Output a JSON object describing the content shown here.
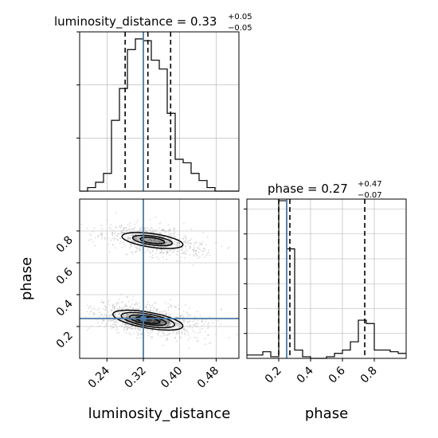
{
  "chart_data": {
    "type": "corner",
    "parameters": [
      "luminosity_distance",
      "phase"
    ],
    "truth": {
      "luminosity_distance": 0.32,
      "phase": 0.25
    },
    "colors": {
      "truth": "#4c7aa5",
      "hist": "#000000",
      "density": "#000000",
      "scatter": "#9a9a9a",
      "grid": "#b0b0b0"
    },
    "grid": true,
    "panels": [
      {
        "id": "luminosity_distance-marginal",
        "type": "histogram",
        "parameter": "luminosity_distance",
        "title": {
          "main": "luminosity_distance = 0.33",
          "sup": "+0.05",
          "sub": "−0.05"
        },
        "xlim": [
          0.18,
          0.53
        ],
        "quantiles": [
          0.28,
          0.33,
          0.38
        ],
        "bin_edges": [
          0.18,
          0.1975,
          0.215,
          0.2325,
          0.25,
          0.2675,
          0.285,
          0.3025,
          0.32,
          0.3375,
          0.355,
          0.3725,
          0.39,
          0.4075,
          0.425,
          0.4425,
          0.46,
          0.4775,
          0.495,
          0.5125,
          0.53
        ],
        "counts": [
          0.0,
          0.02,
          0.05,
          0.1,
          0.4,
          0.58,
          0.8,
          0.86,
          0.85,
          0.74,
          0.69,
          0.44,
          0.18,
          0.16,
          0.1,
          0.06,
          0.02,
          0.0,
          0.0,
          0.0
        ],
        "ylim": [
          0,
          0.9
        ],
        "ytick_values": [
          0.3,
          0.6,
          0.9
        ],
        "xtick_labels": []
      },
      {
        "id": "phase-marginal",
        "type": "histogram",
        "parameter": "phase",
        "title": {
          "main": "phase = 0.27",
          "sup": "+0.47",
          "sub": "−0.07"
        },
        "xlim": [
          0.0,
          1.0
        ],
        "quantiles": [
          0.2,
          0.27,
          0.74
        ],
        "bin_edges": [
          0.0,
          0.05,
          0.1,
          0.15,
          0.2,
          0.25,
          0.3,
          0.35,
          0.4,
          0.45,
          0.5,
          0.55,
          0.6,
          0.65,
          0.7,
          0.75,
          0.8,
          0.85,
          0.9,
          0.95,
          1.0
        ],
        "counts": [
          0.02,
          0.02,
          0.04,
          0.01,
          0.95,
          0.66,
          0.05,
          0.01,
          0.0,
          0.0,
          0.01,
          0.03,
          0.05,
          0.1,
          0.23,
          0.21,
          0.05,
          0.05,
          0.04,
          0.03
        ],
        "ylim": [
          0,
          0.96
        ],
        "ytick_values": [
          0.15,
          0.3,
          0.45,
          0.6,
          0.75,
          0.9
        ],
        "xtick_values": [
          0.2,
          0.4,
          0.6,
          0.8
        ],
        "xtick_labels": [
          "0.2",
          "0.4",
          "0.6",
          "0.8"
        ],
        "xlabel": "phase"
      },
      {
        "id": "luminosity_distance-vs-phase",
        "type": "2d-density",
        "x": "luminosity_distance",
        "y": "phase",
        "xlim": [
          0.18,
          0.53
        ],
        "ylim": [
          0.0,
          1.0
        ],
        "xtick_values": [
          0.24,
          0.32,
          0.4,
          0.48
        ],
        "xtick_labels": [
          "0.24",
          "0.32",
          "0.40",
          "0.48"
        ],
        "ytick_values": [
          0.2,
          0.4,
          0.6,
          0.8
        ],
        "ytick_labels": [
          "0.2",
          "0.4",
          "0.6",
          "0.8"
        ],
        "xlabel": "luminosity_distance",
        "ylabel": "phase",
        "clusters": [
          {
            "center": [
              0.34,
              0.74
            ],
            "spread": [
              0.05,
              0.045
            ],
            "levels": [
              0.4,
              0.65,
              1.0
            ]
          },
          {
            "center": [
              0.33,
              0.24
            ],
            "spread": [
              0.055,
              0.05
            ],
            "levels": [
              0.35,
              0.55,
              0.8,
              1.05
            ]
          }
        ]
      }
    ]
  }
}
